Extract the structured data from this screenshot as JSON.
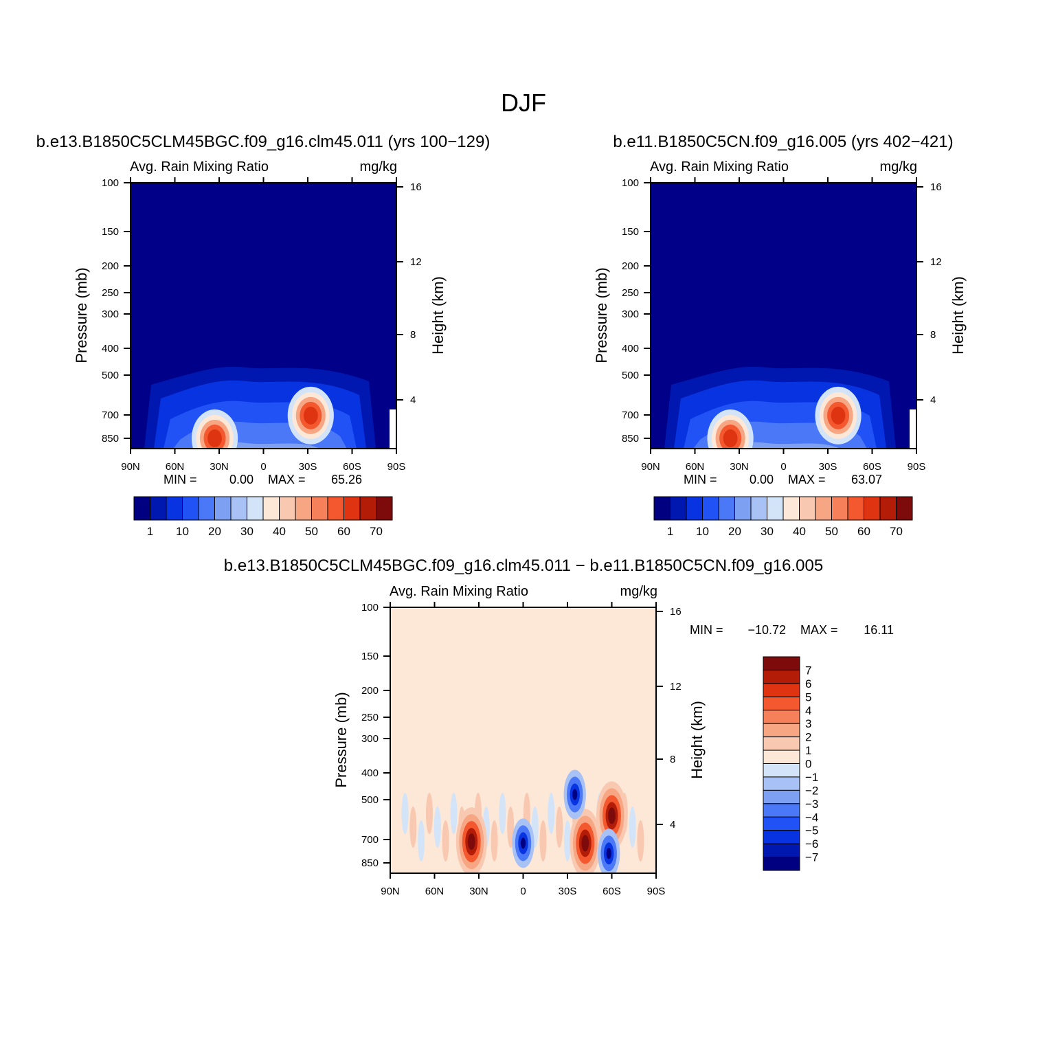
{
  "figure": {
    "title": "DJF"
  },
  "chart_data": [
    {
      "type": "heatmap",
      "title": "b.e13.B1850C5CLM45BGC.f09_g16.clm45.011 (yrs 100−129)",
      "left_string": "Avg. Rain Mixing Ratio",
      "right_string": "mg/kg",
      "ylabel": "Pressure (mb)",
      "ylabel_right": "Height (km)",
      "x_ticks": [
        "90N",
        "60N",
        "30N",
        "0",
        "30S",
        "60S",
        "90S"
      ],
      "y_ticks": [
        "100",
        "150",
        "200",
        "250",
        "300",
        "400",
        "500",
        "700",
        "850"
      ],
      "height_ticks": [
        "16",
        "12",
        "8",
        "4"
      ],
      "ylim": [
        1000,
        100
      ],
      "y_scale": "log",
      "min_label": "MIN =",
      "min_value": "0.00",
      "max_label": "MAX =",
      "max_value": "65.26",
      "colorbar_levels": [
        "1",
        "10",
        "20",
        "30",
        "40",
        "50",
        "60",
        "70"
      ],
      "colorbar_orientation": "horizontal",
      "features": [
        {
          "lat": 33,
          "p": 900,
          "value": 62
        },
        {
          "lat": -32,
          "p": 740,
          "value": 65
        }
      ]
    },
    {
      "type": "heatmap",
      "title": "b.e11.B1850C5CN.f09_g16.005 (yrs 402−421)",
      "left_string": "Avg. Rain Mixing Ratio",
      "right_string": "mg/kg",
      "ylabel": "Pressure (mb)",
      "ylabel_right": "Height (km)",
      "x_ticks": [
        "90N",
        "60N",
        "30N",
        "0",
        "30S",
        "60S",
        "90S"
      ],
      "y_ticks": [
        "100",
        "150",
        "200",
        "250",
        "300",
        "400",
        "500",
        "700",
        "850"
      ],
      "height_ticks": [
        "16",
        "12",
        "8",
        "4"
      ],
      "ylim": [
        1000,
        100
      ],
      "y_scale": "log",
      "min_label": "MIN =",
      "min_value": "0.00",
      "max_label": "MAX =",
      "max_value": "63.07",
      "colorbar_levels": [
        "1",
        "10",
        "20",
        "30",
        "40",
        "50",
        "60",
        "70"
      ],
      "colorbar_orientation": "horizontal",
      "features": [
        {
          "lat": 36,
          "p": 900,
          "value": 55
        },
        {
          "lat": -37,
          "p": 740,
          "value": 62
        }
      ]
    },
    {
      "type": "heatmap",
      "title": "b.e13.B1850C5CLM45BGC.f09_g16.clm45.011 − b.e11.B1850C5CN.f09_g16.005",
      "left_string": "Avg. Rain Mixing Ratio",
      "right_string": "mg/kg",
      "ylabel": "Pressure (mb)",
      "ylabel_right": "Height (km)",
      "x_ticks": [
        "90N",
        "60N",
        "30N",
        "0",
        "30S",
        "60S",
        "90S"
      ],
      "y_ticks": [
        "100",
        "150",
        "200",
        "250",
        "300",
        "400",
        "500",
        "700",
        "850"
      ],
      "height_ticks": [
        "16",
        "12",
        "8",
        "4"
      ],
      "ylim": [
        1000,
        100
      ],
      "y_scale": "log",
      "min_label": "MIN =",
      "min_value": "−10.72",
      "max_label": "MAX =",
      "max_value": "16.11",
      "colorbar_levels": [
        "7",
        "6",
        "5",
        "4",
        "3",
        "2",
        "1",
        "0",
        "−1",
        "−2",
        "−3",
        "−4",
        "−5",
        "−6",
        "−7"
      ],
      "colorbar_orientation": "vertical",
      "features": [
        {
          "lat": 35,
          "p": 750,
          "value": 9
        },
        {
          "lat": -42,
          "p": 760,
          "value": 8
        },
        {
          "lat": -60,
          "p": 600,
          "value": 7
        },
        {
          "lat": 0,
          "p": 760,
          "value": -5
        },
        {
          "lat": -35,
          "p": 500,
          "value": -7
        },
        {
          "lat": -58,
          "p": 830,
          "value": -6
        }
      ]
    }
  ],
  "colors": {
    "background_field": "#000088",
    "diff_background": "#fde8d8",
    "colorbar_seq": [
      "#000080",
      "#0017b0",
      "#0734e0",
      "#2152f5",
      "#4a78f7",
      "#7da0f3",
      "#a8c2f5",
      "#d3e4f8",
      "#fde8d8",
      "#f9c8b0",
      "#f7a684",
      "#f6805a",
      "#f4582f",
      "#de3412",
      "#b31d08",
      "#7e0b0b"
    ],
    "colorbar_div": [
      "#000080",
      "#0017b0",
      "#0734e0",
      "#2152f5",
      "#4a78f7",
      "#7da0f3",
      "#a8c2f5",
      "#d3e4f8",
      "#fde8d8",
      "#f9c8b0",
      "#f7a684",
      "#f6805a",
      "#f4582f",
      "#de3412",
      "#b31d08",
      "#7e0b0b"
    ]
  }
}
